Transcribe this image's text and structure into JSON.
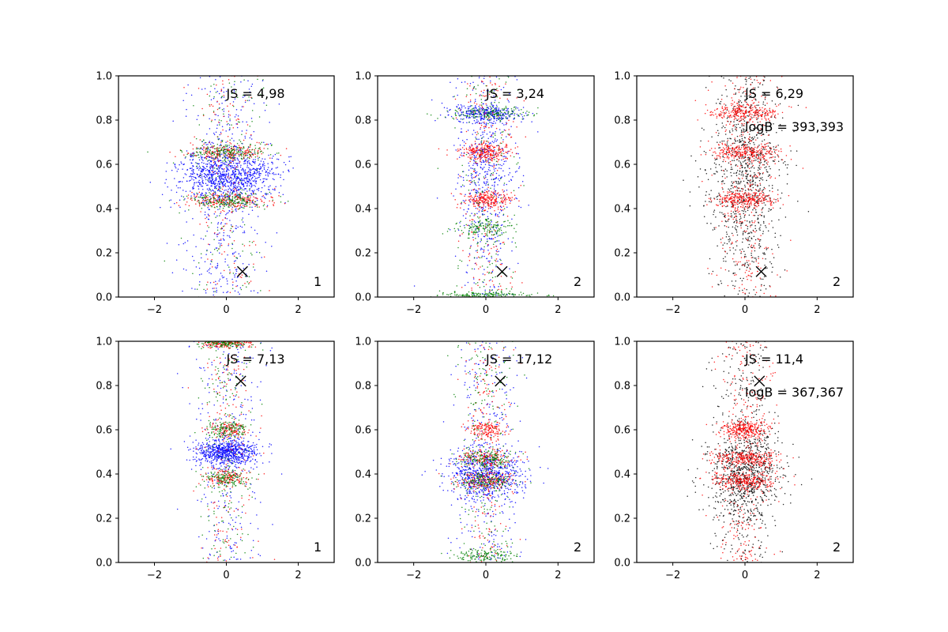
{
  "chart_data": [
    {
      "type": "scatter",
      "panel": 1,
      "xlim": [
        -3,
        3
      ],
      "ylim": [
        0.0,
        1.0
      ],
      "xticks": [
        -2,
        0,
        2
      ],
      "xtick_labels": [
        "−2",
        "0",
        "2"
      ],
      "yticks": [
        0.0,
        0.2,
        0.4,
        0.6,
        0.8,
        1.0
      ],
      "ytick_labels": [
        "0.0",
        "0.2",
        "0.4",
        "0.6",
        "0.8",
        "1.0"
      ],
      "annotations": [
        "JS = 4,98"
      ],
      "corner_label": "1",
      "marker": {
        "x": 0.45,
        "y": 0.115,
        "symbol": "x"
      },
      "series": [
        {
          "color": "#0000ff",
          "count": 1400,
          "bands": [
            {
              "y": 0.55,
              "sy": 0.06,
              "sx": 0.9
            }
          ],
          "background": {
            "sx": 0.55
          }
        },
        {
          "color": "#ff0000",
          "count": 550,
          "bands": [
            {
              "y": 0.655,
              "sy": 0.018,
              "sx": 0.75
            },
            {
              "y": 0.435,
              "sy": 0.018,
              "sx": 0.75
            }
          ],
          "background": {
            "sx": 0.5
          }
        },
        {
          "color": "#008000",
          "count": 550,
          "bands": [
            {
              "y": 0.655,
              "sy": 0.018,
              "sx": 0.75
            },
            {
              "y": 0.435,
              "sy": 0.018,
              "sx": 0.75
            }
          ],
          "background": {
            "sx": 0.5
          }
        }
      ]
    },
    {
      "type": "scatter",
      "panel": 2,
      "xlim": [
        -3,
        3
      ],
      "ylim": [
        0.0,
        1.0
      ],
      "xticks": [
        -2,
        0,
        2
      ],
      "xtick_labels": [
        "−2",
        "0",
        "2"
      ],
      "yticks": [
        0.0,
        0.2,
        0.4,
        0.6,
        0.8,
        1.0
      ],
      "ytick_labels": [
        "0.0",
        "0.2",
        "0.4",
        "0.6",
        "0.8",
        "1.0"
      ],
      "annotations": [
        "JS = 3,24"
      ],
      "corner_label": "2",
      "marker": {
        "x": 0.45,
        "y": 0.115,
        "symbol": "x"
      },
      "series": [
        {
          "color": "#0000ff",
          "count": 900,
          "bands": [
            {
              "y": 0.83,
              "sy": 0.02,
              "sx": 0.7
            },
            {
              "y": 0.55,
              "sy": 0.15,
              "sx": 0.45
            }
          ],
          "background": {
            "sx": 0.45
          }
        },
        {
          "color": "#ff0000",
          "count": 700,
          "bands": [
            {
              "y": 0.655,
              "sy": 0.02,
              "sx": 0.5
            },
            {
              "y": 0.44,
              "sy": 0.02,
              "sx": 0.5
            }
          ],
          "background": {
            "sx": 0.4
          }
        },
        {
          "color": "#008000",
          "count": 650,
          "bands": [
            {
              "y": 0.83,
              "sy": 0.015,
              "sx": 0.8
            },
            {
              "y": 0.31,
              "sy": 0.02,
              "sx": 0.55
            },
            {
              "y": 0.01,
              "sy": 0.008,
              "sx": 0.8
            }
          ],
          "background": {
            "sx": 0.45
          }
        }
      ]
    },
    {
      "type": "scatter",
      "panel": 3,
      "xlim": [
        -3,
        3
      ],
      "ylim": [
        0.0,
        1.0
      ],
      "xticks": [
        -2,
        0,
        2
      ],
      "xtick_labels": [
        "−2",
        "0",
        "2"
      ],
      "yticks": [
        0.0,
        0.2,
        0.4,
        0.6,
        0.8,
        1.0
      ],
      "ytick_labels": [
        "0.0",
        "0.2",
        "0.4",
        "0.6",
        "0.8",
        "1.0"
      ],
      "annotations": [
        "JS = 6,29",
        "logB = 393,393"
      ],
      "corner_label": "2",
      "marker": {
        "x": 0.45,
        "y": 0.115,
        "symbol": "x"
      },
      "series": [
        {
          "color": "#000000",
          "count": 1000,
          "bands": [
            {
              "y": 0.55,
              "sy": 0.2,
              "sx": 0.7
            }
          ],
          "background": {
            "sx": 0.5
          }
        },
        {
          "color": "#ff0000",
          "count": 1100,
          "bands": [
            {
              "y": 0.835,
              "sy": 0.02,
              "sx": 0.65
            },
            {
              "y": 0.655,
              "sy": 0.02,
              "sx": 0.6
            },
            {
              "y": 0.44,
              "sy": 0.02,
              "sx": 0.55
            }
          ],
          "background": {
            "sx": 0.45
          }
        }
      ]
    },
    {
      "type": "scatter",
      "panel": 4,
      "xlim": [
        -3,
        3
      ],
      "ylim": [
        0.0,
        1.0
      ],
      "xticks": [
        -2,
        0,
        2
      ],
      "xtick_labels": [
        "−2",
        "0",
        "2"
      ],
      "yticks": [
        0.0,
        0.2,
        0.4,
        0.6,
        0.8,
        1.0
      ],
      "ytick_labels": [
        "0.0",
        "0.2",
        "0.4",
        "0.6",
        "0.8",
        "1.0"
      ],
      "annotations": [
        "JS = 7,13"
      ],
      "corner_label": "1",
      "marker": {
        "x": 0.4,
        "y": 0.82,
        "symbol": "x"
      },
      "series": [
        {
          "color": "#0000ff",
          "count": 1000,
          "bands": [
            {
              "y": 0.5,
              "sy": 0.03,
              "sx": 0.55
            }
          ],
          "background": {
            "sx": 0.5
          }
        },
        {
          "color": "#ff0000",
          "count": 550,
          "bands": [
            {
              "y": 0.99,
              "sy": 0.01,
              "sx": 0.5
            },
            {
              "y": 0.6,
              "sy": 0.02,
              "sx": 0.4
            },
            {
              "y": 0.38,
              "sy": 0.02,
              "sx": 0.4
            }
          ],
          "background": {
            "sx": 0.4
          }
        },
        {
          "color": "#008000",
          "count": 550,
          "bands": [
            {
              "y": 0.99,
              "sy": 0.01,
              "sx": 0.5
            },
            {
              "y": 0.6,
              "sy": 0.02,
              "sx": 0.4
            },
            {
              "y": 0.38,
              "sy": 0.02,
              "sx": 0.4
            }
          ],
          "background": {
            "sx": 0.4
          }
        }
      ]
    },
    {
      "type": "scatter",
      "panel": 5,
      "xlim": [
        -3,
        3
      ],
      "ylim": [
        0.0,
        1.0
      ],
      "xticks": [
        -2,
        0,
        2
      ],
      "xtick_labels": [
        "−2",
        "0",
        "2"
      ],
      "yticks": [
        0.0,
        0.2,
        0.4,
        0.6,
        0.8,
        1.0
      ],
      "ytick_labels": [
        "0.0",
        "0.2",
        "0.4",
        "0.6",
        "0.8",
        "1.0"
      ],
      "annotations": [
        "JS = 17,12"
      ],
      "corner_label": "2",
      "marker": {
        "x": 0.4,
        "y": 0.82,
        "symbol": "x"
      },
      "series": [
        {
          "color": "#0000ff",
          "count": 1000,
          "bands": [
            {
              "y": 0.4,
              "sy": 0.06,
              "sx": 0.7
            }
          ],
          "background": {
            "sx": 0.45
          }
        },
        {
          "color": "#ff0000",
          "count": 650,
          "bands": [
            {
              "y": 0.47,
              "sy": 0.02,
              "sx": 0.5
            },
            {
              "y": 0.37,
              "sy": 0.02,
              "sx": 0.5
            },
            {
              "y": 0.6,
              "sy": 0.02,
              "sx": 0.35
            }
          ],
          "background": {
            "sx": 0.35
          }
        },
        {
          "color": "#008000",
          "count": 650,
          "bands": [
            {
              "y": 0.47,
              "sy": 0.02,
              "sx": 0.55
            },
            {
              "y": 0.37,
              "sy": 0.02,
              "sx": 0.55
            },
            {
              "y": 0.03,
              "sy": 0.015,
              "sx": 0.6
            }
          ],
          "background": {
            "sx": 0.4
          }
        }
      ]
    },
    {
      "type": "scatter",
      "panel": 6,
      "xlim": [
        -3,
        3
      ],
      "ylim": [
        0.0,
        1.0
      ],
      "xticks": [
        -2,
        0,
        2
      ],
      "xtick_labels": [
        "−2",
        "0",
        "2"
      ],
      "yticks": [
        0.0,
        0.2,
        0.4,
        0.6,
        0.8,
        1.0
      ],
      "ytick_labels": [
        "0.0",
        "0.2",
        "0.4",
        "0.6",
        "0.8",
        "1.0"
      ],
      "annotations": [
        "JS = 11,4",
        "logB = 367,367"
      ],
      "corner_label": "2",
      "marker": {
        "x": 0.4,
        "y": 0.82,
        "symbol": "x"
      },
      "series": [
        {
          "color": "#000000",
          "count": 1100,
          "bands": [
            {
              "y": 0.4,
              "sy": 0.1,
              "sx": 0.65
            }
          ],
          "background": {
            "sx": 0.45
          }
        },
        {
          "color": "#ff0000",
          "count": 1100,
          "bands": [
            {
              "y": 0.47,
              "sy": 0.02,
              "sx": 0.6
            },
            {
              "y": 0.37,
              "sy": 0.02,
              "sx": 0.6
            },
            {
              "y": 0.6,
              "sy": 0.02,
              "sx": 0.4
            }
          ],
          "background": {
            "sx": 0.4
          }
        }
      ]
    }
  ]
}
